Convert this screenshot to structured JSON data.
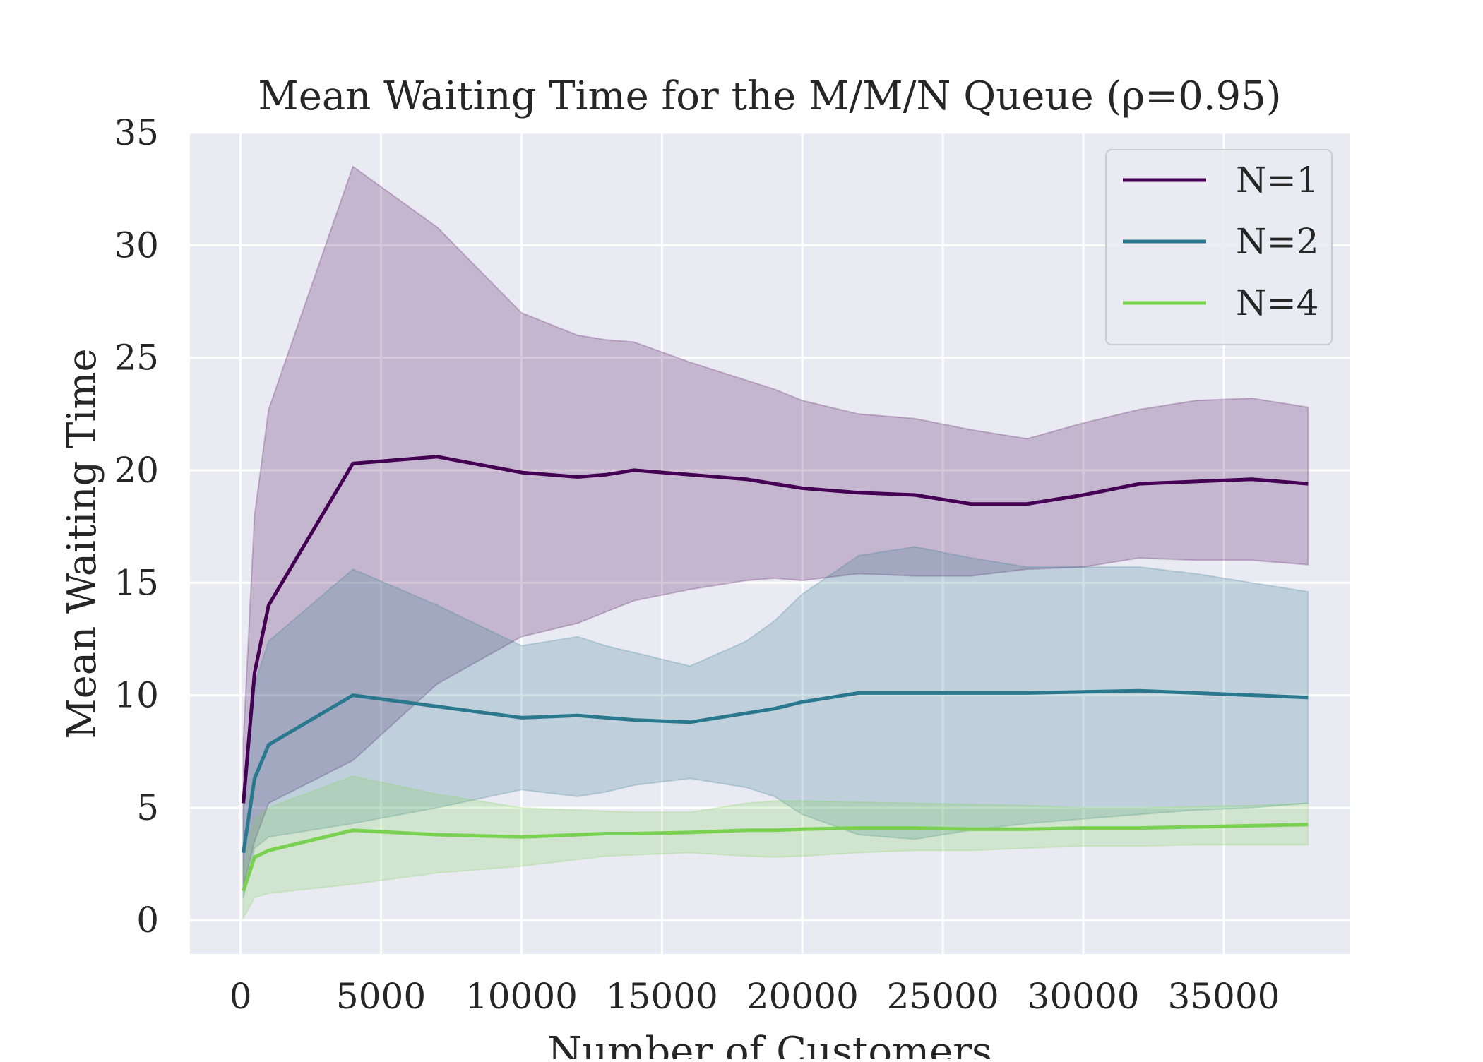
{
  "chart_data": {
    "type": "line",
    "title": "Mean Waiting Time for the M/M/N Queue (ρ=0.95)",
    "xlabel": "Number of Customers",
    "ylabel": "Mean Waiting Time",
    "xlim": [
      -1800,
      39500
    ],
    "ylim": [
      -1.5,
      35
    ],
    "xticks": [
      0,
      5000,
      10000,
      15000,
      20000,
      25000,
      30000,
      35000
    ],
    "yticks": [
      0,
      5,
      10,
      15,
      20,
      25,
      30,
      35
    ],
    "grid": true,
    "legend_position": "top-right",
    "background_color": "#eaeaf2",
    "series": [
      {
        "name": "N=1",
        "color": "#440154",
        "x": [
          100,
          500,
          1000,
          4000,
          7000,
          10000,
          12000,
          13000,
          14000,
          16000,
          18000,
          19000,
          20000,
          22000,
          24000,
          26000,
          28000,
          30000,
          32000,
          34000,
          36000,
          38000
        ],
        "y": [
          5.2,
          11.0,
          14.0,
          20.3,
          20.6,
          19.9,
          19.7,
          19.8,
          20.0,
          19.8,
          19.6,
          19.4,
          19.2,
          19.0,
          18.9,
          18.5,
          18.5,
          18.9,
          19.4,
          19.5,
          19.6,
          19.4
        ],
        "lower": [
          1.5,
          3.5,
          5.2,
          7.1,
          10.5,
          12.6,
          13.2,
          13.7,
          14.2,
          14.7,
          15.1,
          15.2,
          15.1,
          15.4,
          15.3,
          15.3,
          15.6,
          15.7,
          16.1,
          16.0,
          16.0,
          15.8
        ],
        "upper": [
          8.0,
          18.0,
          22.7,
          33.5,
          30.8,
          27.0,
          26.0,
          25.8,
          25.7,
          24.8,
          24.0,
          23.6,
          23.1,
          22.5,
          22.3,
          21.8,
          21.4,
          22.1,
          22.7,
          23.1,
          23.2,
          22.8
        ]
      },
      {
        "name": "N=2",
        "color": "#2a788e",
        "x": [
          100,
          500,
          1000,
          4000,
          7000,
          10000,
          12000,
          13000,
          14000,
          16000,
          18000,
          19000,
          20000,
          22000,
          24000,
          26000,
          28000,
          30000,
          32000,
          34000,
          36000,
          38000
        ],
        "y": [
          3.0,
          6.3,
          7.8,
          10.0,
          9.5,
          9.0,
          9.1,
          9.0,
          8.9,
          8.8,
          9.2,
          9.4,
          9.7,
          10.1,
          10.1,
          10.1,
          10.1,
          10.15,
          10.2,
          10.1,
          10.0,
          9.9
        ],
        "lower": [
          1.0,
          3.2,
          3.7,
          4.3,
          5.0,
          5.8,
          5.5,
          5.7,
          6.0,
          6.3,
          5.9,
          5.5,
          4.7,
          3.8,
          3.6,
          4.0,
          4.3,
          4.5,
          4.7,
          4.9,
          5.0,
          5.2
        ],
        "upper": [
          5.0,
          10.5,
          12.4,
          15.6,
          14.0,
          12.2,
          12.6,
          12.2,
          11.9,
          11.3,
          12.4,
          13.3,
          14.5,
          16.2,
          16.6,
          16.1,
          15.7,
          15.7,
          15.7,
          15.4,
          15.0,
          14.6
        ]
      },
      {
        "name": "N=4",
        "color": "#7ad151",
        "x": [
          100,
          500,
          1000,
          4000,
          7000,
          10000,
          12000,
          13000,
          14000,
          16000,
          18000,
          19000,
          20000,
          22000,
          24000,
          26000,
          28000,
          30000,
          32000,
          34000,
          36000,
          38000
        ],
        "y": [
          1.3,
          2.8,
          3.1,
          4.0,
          3.8,
          3.7,
          3.8,
          3.85,
          3.85,
          3.9,
          4.0,
          4.0,
          4.05,
          4.1,
          4.1,
          4.05,
          4.05,
          4.1,
          4.1,
          4.15,
          4.2,
          4.25
        ],
        "lower": [
          0.1,
          1.0,
          1.2,
          1.6,
          2.1,
          2.4,
          2.7,
          2.85,
          2.9,
          3.0,
          2.85,
          2.8,
          2.85,
          3.0,
          3.1,
          3.1,
          3.2,
          3.3,
          3.3,
          3.35,
          3.35,
          3.35
        ],
        "upper": [
          2.5,
          4.5,
          5.0,
          6.4,
          5.6,
          5.0,
          4.9,
          4.85,
          4.8,
          4.8,
          5.2,
          5.3,
          5.3,
          5.25,
          5.2,
          5.15,
          5.1,
          5.0,
          5.0,
          5.05,
          5.1,
          5.2
        ]
      }
    ]
  }
}
